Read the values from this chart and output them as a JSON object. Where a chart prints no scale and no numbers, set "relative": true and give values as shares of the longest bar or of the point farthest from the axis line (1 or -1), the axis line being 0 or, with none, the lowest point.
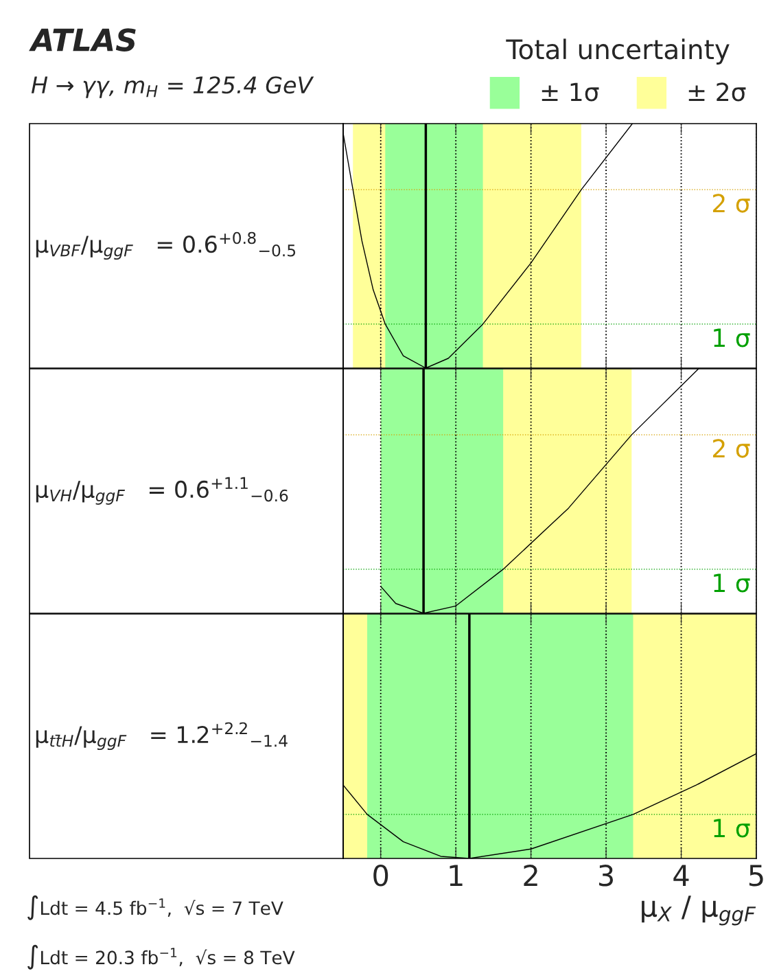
{
  "chart_data": [
    {
      "type": "line",
      "subtitle": "H → γγ, m$_{H}$ = 125.4 GeV",
      "legend_title": "Total uncertainty",
      "legend": "top right",
      "relative": true,
      "xlim": [
        -0.5,
        5
      ],
      "xticks": [
        0,
        1,
        2,
        3,
        4,
        5
      ],
      "tick_labels": false,
      "grid": "x",
      "series": [
        {
          "color": "#000000",
          "x": [
            -0.5,
            -0.37,
            -0.25,
            -0.1,
            0.06,
            0.3,
            0.6,
            0.9,
            1.36,
            2.0,
            2.67,
            3.35
          ],
          "values": [
            0.96,
            0.73,
            0.52,
            0.32,
            0.18,
            0.05,
            0,
            0.04,
            0.18,
            0.43,
            0.73,
            1.0
          ]
        }
      ],
      "bands": [
        {
          "axis": "x",
          "from": -0.37,
          "to": 2.67,
          "label": "± 2σ",
          "color": "#ffff99"
        },
        {
          "axis": "x",
          "from": 0.06,
          "to": 1.36,
          "label": "± 1σ",
          "color": "#99ff99"
        }
      ],
      "ref_lines": [
        {
          "axis": "y",
          "value": 0.73,
          "label": "2 σ",
          "color": "#d4a000",
          "line_style": "dotted"
        },
        {
          "axis": "y",
          "value": 0.18,
          "label": "1 σ",
          "color": "#00a000",
          "line_style": "dotted"
        },
        {
          "axis": "x",
          "value": 0.6,
          "color": "#000000",
          "line_style": "solid"
        }
      ],
      "annotations": [
        "μ$_{VBF}$/μ$_{ggF}$   = 0.6$^{+0.8}$$_{−0.5}$",
        "ATLAS"
      ]
    },
    {
      "type": "line",
      "relative": true,
      "xlim": [
        -0.5,
        5
      ],
      "xticks": [
        0,
        1,
        2,
        3,
        4,
        5
      ],
      "tick_labels": false,
      "grid": "x",
      "series": [
        {
          "color": "#000000",
          "x": [
            0,
            0.2,
            0.57,
            1.0,
            1.63,
            2.5,
            3.34,
            4.23
          ],
          "values": [
            0.11,
            0.04,
            0,
            0.03,
            0.18,
            0.43,
            0.73,
            1.0
          ]
        }
      ],
      "bands": [
        {
          "axis": "x",
          "from": 0,
          "to": 3.34,
          "color": "#ffff99"
        },
        {
          "axis": "x",
          "from": 0,
          "to": 1.63,
          "color": "#99ff99"
        }
      ],
      "ref_lines": [
        {
          "axis": "y",
          "value": 0.73,
          "label": "2 σ",
          "color": "#d4a000",
          "line_style": "dotted"
        },
        {
          "axis": "y",
          "value": 0.18,
          "label": "1 σ",
          "color": "#00a000",
          "line_style": "dotted"
        },
        {
          "axis": "x",
          "value": 0.57,
          "color": "#000000",
          "line_style": "solid"
        }
      ],
      "annotations": [
        "μ$_{VH}$/μ$_{ggF}$   = 0.6$^{+1.1}$$_{−0.6}$"
      ]
    },
    {
      "type": "line",
      "relative": true,
      "xlabel": "μ$_{X}$ / μ$_{ggF}$",
      "xlim": [
        -0.5,
        5
      ],
      "xticks": [
        0,
        1,
        2,
        3,
        4,
        5
      ],
      "tick_labels": "x",
      "grid": "x",
      "series": [
        {
          "color": "#000000",
          "x": [
            -0.5,
            -0.18,
            0.3,
            0.8,
            1.18,
            2.0,
            3.36,
            4.2,
            5.0
          ],
          "values": [
            0.7,
            0.42,
            0.16,
            0.02,
            0,
            0.09,
            0.42,
            0.7,
            1.0
          ]
        }
      ],
      "bands": [
        {
          "axis": "x",
          "from": -0.5,
          "to": 5,
          "color": "#ffff99"
        },
        {
          "axis": "x",
          "from": -0.18,
          "to": 3.36,
          "color": "#99ff99"
        }
      ],
      "ref_lines": [
        {
          "axis": "y",
          "value": 0.42,
          "label": "1 σ",
          "color": "#00a000",
          "line_style": "dotted"
        },
        {
          "axis": "x",
          "value": 1.18,
          "color": "#000000",
          "line_style": "solid"
        }
      ],
      "annotations": [
        "μ$_{tt̄H}$/μ$_{ggF}$   = 1.2$^{+2.2}$$_{−1.4}$",
        "∫Ldt = 4.5 fb$^{−1}$,  √s = 7 TeV",
        "∫Ldt = 20.3 fb$^{−1}$,  √s = 8 TeV"
      ]
    }
  ]
}
